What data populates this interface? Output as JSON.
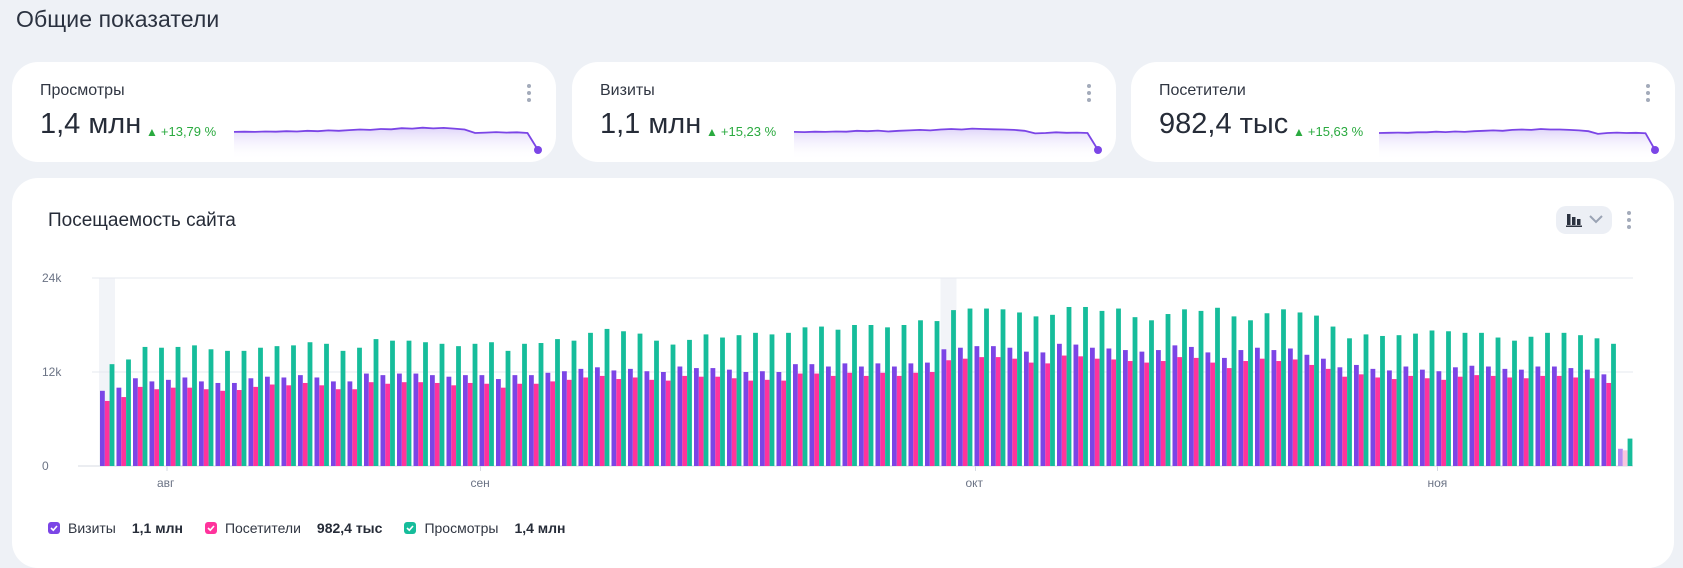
{
  "page": {
    "title": "Общие показатели"
  },
  "kpis": [
    {
      "name": "Просмотры",
      "value": "1,4 млн",
      "delta": "+13,79 %",
      "trend": "up"
    },
    {
      "name": "Визиты",
      "value": "1,1 млн",
      "delta": "+15,23 %",
      "trend": "up"
    },
    {
      "name": "Посетители",
      "value": "982,4 тыс",
      "delta": "+15,63 %",
      "trend": "up"
    }
  ],
  "colors": {
    "visits": "#7b45e6",
    "visitors": "#ff339c",
    "views": "#16bd9b",
    "delta_up": "#2aaa3f",
    "spark": "#7b45e6"
  },
  "chart": {
    "title": "Посещаемость сайта",
    "type_switch_icon": "bar-chart-icon",
    "legend": [
      {
        "label": "Визиты",
        "value": "1,1 млн",
        "color": "#7b45e6"
      },
      {
        "label": "Посетители",
        "value": "982,4 тыс",
        "color": "#ff339c"
      },
      {
        "label": "Просмотры",
        "value": "1,4 млн",
        "color": "#16bd9b"
      }
    ]
  },
  "chart_data": {
    "type": "bar",
    "title": "Посещаемость сайта",
    "xlabel": "",
    "ylabel": "",
    "ylim": [
      0,
      24000
    ],
    "yticks": [
      "0",
      "12k",
      "24k"
    ],
    "ytick_values": [
      0,
      12000,
      24000
    ],
    "grid": true,
    "legend_position": "bottom-left",
    "month_ticks": [
      {
        "label": "авг",
        "index": 4
      },
      {
        "label": "сен",
        "index": 23
      },
      {
        "label": "окт",
        "index": 53
      },
      {
        "label": "ноя",
        "index": 81
      }
    ],
    "highlight_indices": [
      0,
      51
    ],
    "partial_index": 92,
    "series": [
      {
        "name": "Визиты",
        "values": [
          9600,
          10000,
          11200,
          10800,
          11000,
          11300,
          10800,
          10600,
          10600,
          11200,
          11400,
          11300,
          11600,
          11300,
          10800,
          10800,
          11800,
          11600,
          11800,
          11800,
          11600,
          11400,
          11600,
          11600,
          11100,
          11600,
          11600,
          11900,
          12100,
          12400,
          12600,
          12200,
          12400,
          12100,
          12000,
          12700,
          12500,
          12500,
          12300,
          12000,
          12100,
          12000,
          13000,
          13000,
          12700,
          13100,
          12700,
          13100,
          12700,
          13100,
          13200,
          14900,
          15100,
          15300,
          15300,
          15100,
          14600,
          14500,
          15600,
          15500,
          15100,
          15000,
          14800,
          14600,
          14800,
          15400,
          15200,
          14500,
          13800,
          14800,
          15100,
          14800,
          15000,
          14200,
          13700,
          12600,
          12900,
          12400,
          12200,
          12700,
          12300,
          12100,
          12600,
          12800,
          12700,
          12400,
          12300,
          12700,
          12700,
          12500,
          12300,
          11700,
          2200
        ]
      },
      {
        "name": "Посетители",
        "values": [
          8300,
          8800,
          10100,
          9800,
          10000,
          10000,
          9800,
          9600,
          9700,
          10100,
          10400,
          10300,
          10600,
          10300,
          9800,
          9800,
          10700,
          10500,
          10700,
          10700,
          10600,
          10300,
          10600,
          10500,
          10000,
          10500,
          10500,
          10800,
          11000,
          11300,
          11500,
          11100,
          11300,
          11000,
          10900,
          11500,
          11400,
          11400,
          11200,
          10900,
          11000,
          10900,
          11800,
          11800,
          11500,
          11900,
          11500,
          11900,
          11500,
          11900,
          12000,
          13500,
          13700,
          13900,
          13900,
          13700,
          13200,
          13100,
          14100,
          14000,
          13700,
          13600,
          13400,
          13200,
          13400,
          13900,
          13800,
          13200,
          12500,
          13400,
          13700,
          13400,
          13600,
          12900,
          12400,
          11400,
          11700,
          11300,
          11100,
          11500,
          11200,
          11000,
          11400,
          11600,
          11500,
          11300,
          11200,
          11500,
          11500,
          11300,
          11200,
          10600,
          2000
        ]
      },
      {
        "name": "Просмотры",
        "values": [
          13000,
          13600,
          15200,
          15100,
          15200,
          15400,
          14900,
          14700,
          14700,
          15100,
          15300,
          15400,
          15800,
          15600,
          14700,
          15100,
          16200,
          16000,
          16000,
          15800,
          15600,
          15300,
          15600,
          15800,
          14700,
          15600,
          15700,
          16200,
          16000,
          17000,
          17500,
          17200,
          16900,
          16000,
          15500,
          16100,
          16800,
          16400,
          16700,
          17000,
          16800,
          17000,
          17700,
          17800,
          17400,
          18000,
          18000,
          17700,
          18000,
          18600,
          18500,
          19900,
          20100,
          20100,
          20000,
          19600,
          19100,
          19300,
          20300,
          20300,
          19800,
          20100,
          19000,
          18600,
          19400,
          20000,
          19800,
          20200,
          19100,
          18600,
          19500,
          20000,
          19600,
          19200,
          17800,
          16300,
          16800,
          16600,
          16700,
          16900,
          17300,
          17200,
          17000,
          17000,
          16400,
          16000,
          16500,
          17000,
          17000,
          16700,
          16300,
          15600,
          3500
        ]
      }
    ]
  },
  "sparklines": {
    "views": [
      0.55,
      0.56,
      0.55,
      0.57,
      0.56,
      0.58,
      0.57,
      0.6,
      0.58,
      0.62,
      0.6,
      0.63,
      0.66,
      0.64,
      0.68,
      0.67,
      0.72,
      0.7,
      0.74,
      0.71,
      0.73,
      0.7,
      0.66,
      0.5,
      0.52,
      0.54,
      0.52,
      0.53,
      0.5,
      0.0
    ],
    "visits": [
      0.55,
      0.54,
      0.56,
      0.55,
      0.57,
      0.56,
      0.6,
      0.58,
      0.61,
      0.57,
      0.6,
      0.62,
      0.64,
      0.62,
      0.66,
      0.68,
      0.66,
      0.7,
      0.68,
      0.67,
      0.66,
      0.64,
      0.6,
      0.48,
      0.5,
      0.53,
      0.51,
      0.52,
      0.5,
      0.0
    ],
    "visitors": [
      0.5,
      0.51,
      0.52,
      0.51,
      0.53,
      0.53,
      0.56,
      0.54,
      0.57,
      0.55,
      0.58,
      0.6,
      0.62,
      0.6,
      0.64,
      0.66,
      0.64,
      0.68,
      0.66,
      0.66,
      0.64,
      0.62,
      0.58,
      0.46,
      0.5,
      0.52,
      0.5,
      0.51,
      0.49,
      0.0
    ]
  }
}
